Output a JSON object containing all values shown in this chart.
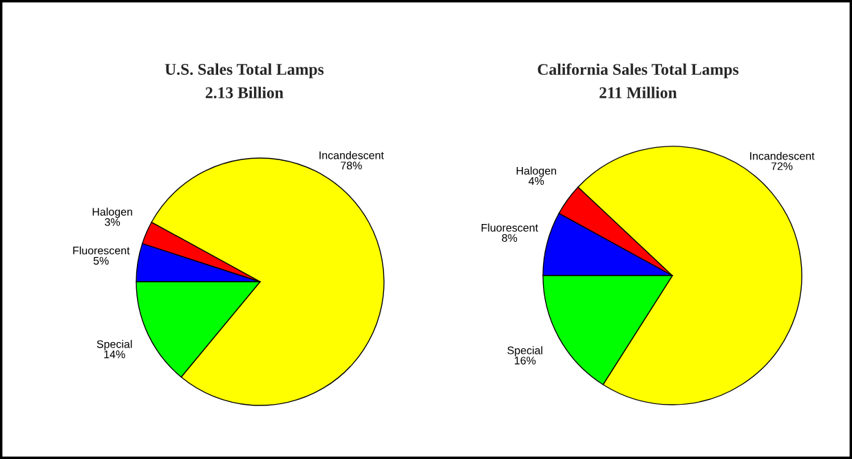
{
  "chart_data": [
    {
      "type": "pie",
      "title": "U.S. Sales Total Lamps",
      "subtitle": "2.13 Billion",
      "categories": [
        "Fluorescent",
        "Halogen",
        "Incandescent",
        "Special"
      ],
      "values": [
        5,
        3,
        78,
        14
      ],
      "value_labels": [
        "5%",
        "3%",
        "78%",
        "14%"
      ],
      "colors": [
        "#0000ff",
        "#ff0000",
        "#ffff00",
        "#00ff00"
      ]
    },
    {
      "type": "pie",
      "title": "California Sales Total Lamps",
      "subtitle": "211 Million",
      "categories": [
        "Fluorescent",
        "Halogen",
        "Incandescent",
        "Special"
      ],
      "values": [
        8,
        4,
        72,
        16
      ],
      "value_labels": [
        "8%",
        "4%",
        "72%",
        "16%"
      ],
      "colors": [
        "#0000ff",
        "#ff0000",
        "#ffff00",
        "#00ff00"
      ]
    }
  ]
}
